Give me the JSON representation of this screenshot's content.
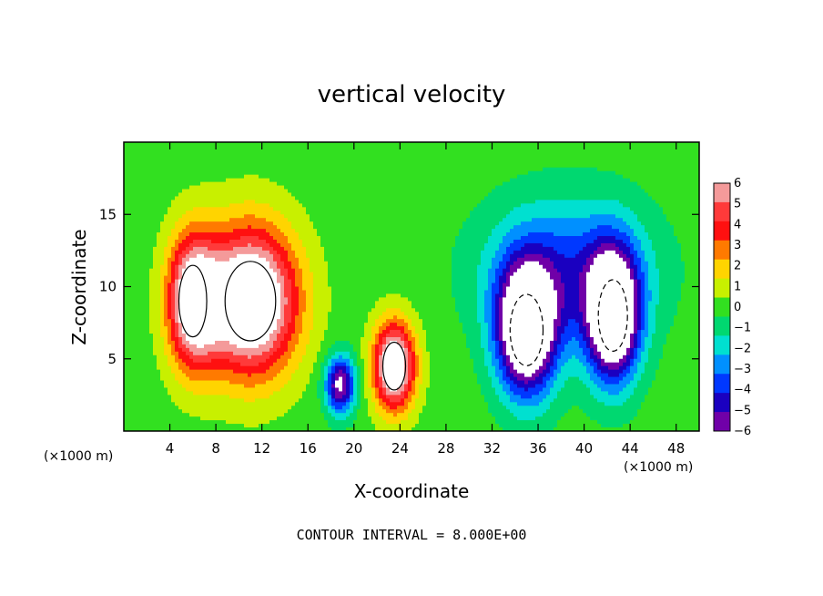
{
  "chart_data": {
    "type": "heatmap",
    "title": "vertical velocity",
    "xlabel": "X-coordinate",
    "ylabel": "Z-coordinate",
    "x_unit": "(×1000 m)",
    "xlim": [
      0,
      50
    ],
    "ylim": [
      0,
      20
    ],
    "x_ticks": [
      4,
      8,
      12,
      16,
      20,
      24,
      28,
      32,
      36,
      40,
      44,
      48
    ],
    "y_ticks": [
      5,
      10,
      15
    ],
    "colorbar": {
      "levels": [
        6,
        5,
        4,
        3,
        2,
        1,
        0,
        -1,
        -2,
        -3,
        -4,
        -5,
        -6
      ],
      "labels": [
        "6",
        "5",
        "4",
        "3",
        "2",
        "1",
        "0",
        "−1",
        "−2",
        "−3",
        "−4",
        "−5",
        "−6"
      ],
      "colors": [
        "#f49a9a",
        "#ff3a3a",
        "#ff1010",
        "#ff7a00",
        "#ffd400",
        "#c8f000",
        "#32e020",
        "#00d870",
        "#00e0d0",
        "#0090ff",
        "#0038ff",
        "#1a00c0",
        "#7000a8"
      ]
    },
    "features": [
      {
        "sign": "positive",
        "cx": 11,
        "cz": 9,
        "sx": 4.0,
        "sz": 5.0,
        "amp": 10
      },
      {
        "sign": "positive",
        "cx": 6,
        "cz": 9,
        "sx": 2.2,
        "sz": 4.5,
        "amp": 8
      },
      {
        "sign": "positive",
        "cx": 23.5,
        "cz": 4.5,
        "sx": 1.8,
        "sz": 3.0,
        "amp": 9
      },
      {
        "sign": "negative",
        "cx": 18.8,
        "cz": 3.2,
        "sx": 1.3,
        "sz": 2.0,
        "amp": -7
      },
      {
        "sign": "negative",
        "cx": 35,
        "cz": 7,
        "sx": 2.6,
        "sz": 4.5,
        "amp": -10
      },
      {
        "sign": "negative",
        "cx": 42.5,
        "cz": 8,
        "sx": 2.3,
        "sz": 4.5,
        "amp": -10
      },
      {
        "sign": "negative",
        "cx": 38.5,
        "cz": 11,
        "sx": 7,
        "sz": 5,
        "amp": -4
      }
    ],
    "contour_interval_note": "CONTOUR INTERVAL = 8.000E+00"
  }
}
